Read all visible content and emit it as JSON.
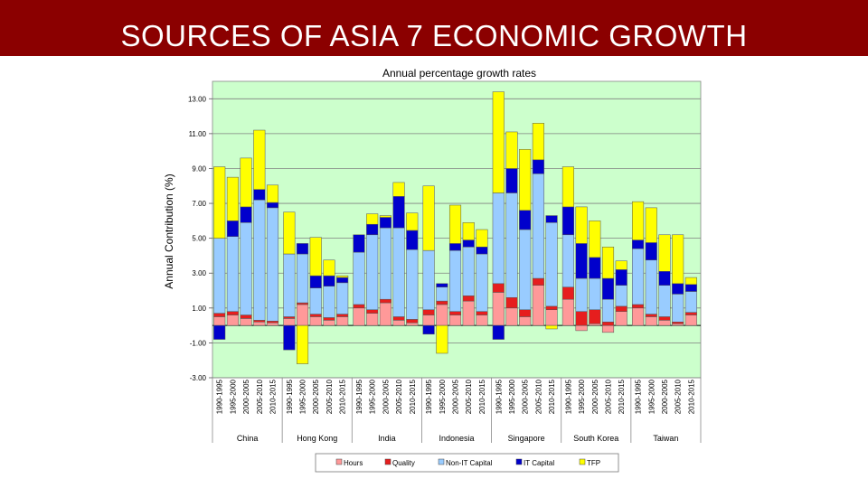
{
  "slide": {
    "title": "SOURCES OF ASIA 7 ECONOMIC GROWTH"
  },
  "colors": {
    "title_bar": "#8b0000",
    "plot_bg": "#ccffcc",
    "Hours": "#ff9999",
    "Quality": "#e61e1e",
    "Non-IT Capital": "#99ccff",
    "IT Capital": "#0000cc",
    "TFP": "#ffff00"
  },
  "chart_data": {
    "type": "bar",
    "stacked": true,
    "title": "Annual percentage growth rates",
    "ylabel": "Annual Contribution (%)",
    "xlabel": "",
    "ylim": [
      -3,
      14
    ],
    "yticks": [
      "13.00",
      "11.00",
      "9.00",
      "7.00",
      "5.00",
      "3.00",
      "1.00",
      "-1.00",
      "-3.00"
    ],
    "ytick_values": [
      13,
      11,
      9,
      7,
      5,
      3,
      1,
      -1,
      -3
    ],
    "grid": true,
    "legend_position": "bottom",
    "periods": [
      "1990-1995",
      "1995-2000",
      "2000-2005",
      "2005-2010",
      "2010-2015"
    ],
    "groups": [
      "China",
      "Hong Kong",
      "India",
      "Indonesia",
      "Singapore",
      "South Korea",
      "Taiwan"
    ],
    "series": [
      {
        "name": "Hours",
        "values": [
          [
            0.5,
            0.6,
            0.4,
            0.2,
            0.15
          ],
          [
            0.4,
            1.2,
            0.5,
            0.3,
            0.5
          ],
          [
            1.0,
            0.7,
            1.3,
            0.3,
            0.15
          ],
          [
            0.6,
            1.2,
            0.6,
            1.4,
            0.6
          ],
          [
            1.9,
            1.0,
            0.5,
            2.3,
            0.9
          ],
          [
            1.5,
            -0.3,
            0.1,
            -0.4,
            0.8
          ],
          [
            1.0,
            0.5,
            0.3,
            0.1,
            0.6
          ]
        ]
      },
      {
        "name": "Quality",
        "values": [
          [
            0.2,
            0.2,
            0.2,
            0.1,
            0.1
          ],
          [
            0.1,
            0.1,
            0.15,
            0.15,
            0.15
          ],
          [
            0.2,
            0.2,
            0.2,
            0.2,
            0.2
          ],
          [
            0.3,
            0.2,
            0.2,
            0.3,
            0.2
          ],
          [
            0.5,
            0.6,
            0.4,
            0.4,
            0.2
          ],
          [
            0.7,
            0.8,
            0.8,
            0.2,
            0.3
          ],
          [
            0.2,
            0.15,
            0.2,
            0.1,
            0.15
          ]
        ]
      },
      {
        "name": "Non-IT Capital",
        "values": [
          [
            4.3,
            4.3,
            5.3,
            6.9,
            6.5
          ],
          [
            3.6,
            2.8,
            1.5,
            1.8,
            1.8
          ],
          [
            3.0,
            4.3,
            4.1,
            5.1,
            4.0
          ],
          [
            3.4,
            0.8,
            3.5,
            2.8,
            3.3
          ],
          [
            5.2,
            6.0,
            4.6,
            6.0,
            4.8
          ],
          [
            3.0,
            1.9,
            1.8,
            1.3,
            1.2
          ],
          [
            3.2,
            3.1,
            1.8,
            1.6,
            1.2
          ]
        ]
      },
      {
        "name": "IT Capital",
        "values": [
          [
            -0.8,
            0.9,
            0.9,
            0.6,
            0.3
          ],
          [
            -1.4,
            0.6,
            0.7,
            0.6,
            0.3
          ],
          [
            1.0,
            0.6,
            0.6,
            1.8,
            1.1
          ],
          [
            -0.5,
            0.2,
            0.4,
            0.4,
            0.4
          ],
          [
            -0.8,
            1.4,
            1.1,
            0.8,
            0.4
          ],
          [
            1.6,
            2.0,
            1.2,
            1.2,
            0.9
          ],
          [
            0.5,
            1.0,
            0.8,
            0.6,
            0.4
          ]
        ]
      },
      {
        "name": "TFP",
        "values": [
          [
            4.1,
            2.5,
            2.8,
            3.4,
            1.0
          ],
          [
            2.4,
            -2.2,
            2.2,
            0.9,
            0.1
          ],
          [
            0.0,
            0.6,
            0.1,
            0.8,
            1.0
          ],
          [
            3.7,
            -1.6,
            2.2,
            1.0,
            1.0
          ],
          [
            5.8,
            2.1,
            3.5,
            2.1,
            -0.2
          ],
          [
            2.3,
            2.1,
            2.1,
            1.8,
            0.5
          ],
          [
            2.2,
            2.0,
            2.1,
            2.8,
            0.4
          ]
        ]
      }
    ]
  }
}
